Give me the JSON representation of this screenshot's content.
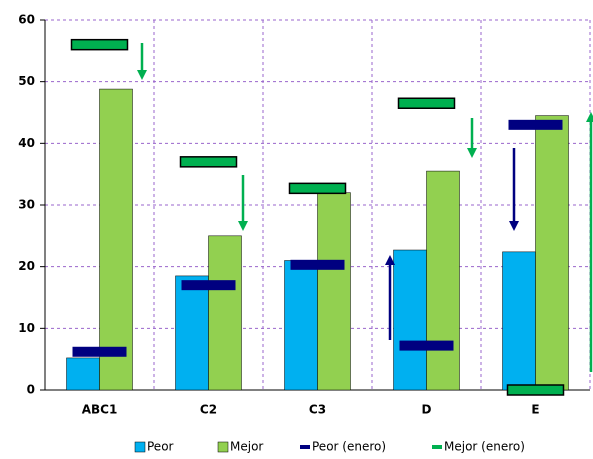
{
  "chart_data": {
    "type": "bar",
    "categories": [
      "ABC1",
      "C2",
      "C3",
      "D",
      "E"
    ],
    "series": [
      {
        "name": "Peor",
        "color": "#00b0f0",
        "values": [
          5.2,
          18.5,
          21,
          22.7,
          22.4
        ]
      },
      {
        "name": "Mejor",
        "color": "#92d050",
        "values": [
          48.8,
          25,
          32,
          35.5,
          44.5
        ]
      },
      {
        "name": "Peor (enero)",
        "color": "#000080",
        "values": [
          6.2,
          17,
          20.3,
          7.2,
          43
        ]
      },
      {
        "name": "Mejor (enero)",
        "color": "#00b050",
        "values": [
          56,
          37,
          32.7,
          46.5,
          0
        ]
      }
    ],
    "ylim": [
      0,
      60
    ],
    "yticks": [
      0,
      10,
      20,
      30,
      40,
      50,
      60
    ],
    "grid": true
  }
}
